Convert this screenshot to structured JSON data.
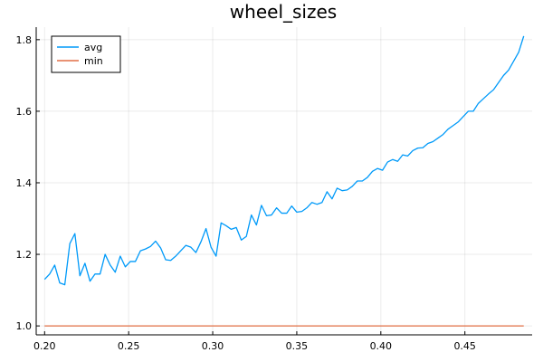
{
  "chart_data": {
    "type": "line",
    "title": "wheel_sizes",
    "xlabel": "",
    "ylabel": "",
    "xlim": [
      0.195,
      0.49
    ],
    "ylim": [
      0.975,
      1.835
    ],
    "xticks": [
      0.2,
      0.25,
      0.3,
      0.35,
      0.4,
      0.45
    ],
    "xtick_labels": [
      "0.20",
      "0.25",
      "0.30",
      "0.35",
      "0.40",
      "0.45"
    ],
    "yticks": [
      1.0,
      1.2,
      1.4,
      1.6,
      1.8
    ],
    "ytick_labels": [
      "1.0",
      "1.2",
      "1.4",
      "1.6",
      "1.8"
    ],
    "grid": true,
    "legend_position": "top-left",
    "series": [
      {
        "name": "avg",
        "color": "#009af9",
        "x": [
          0.2,
          0.203,
          0.206,
          0.209,
          0.212,
          0.215,
          0.218,
          0.221,
          0.224,
          0.227,
          0.23,
          0.233,
          0.236,
          0.239,
          0.242,
          0.245,
          0.248,
          0.251,
          0.254,
          0.257,
          0.26,
          0.263,
          0.266,
          0.269,
          0.272,
          0.275,
          0.278,
          0.281,
          0.284,
          0.287,
          0.29,
          0.293,
          0.296,
          0.299,
          0.302,
          0.305,
          0.308,
          0.311,
          0.314,
          0.317,
          0.32,
          0.323,
          0.326,
          0.329,
          0.332,
          0.335,
          0.338,
          0.341,
          0.344,
          0.347,
          0.35,
          0.353,
          0.356,
          0.359,
          0.362,
          0.365,
          0.368,
          0.371,
          0.374,
          0.377,
          0.38,
          0.383,
          0.386,
          0.389,
          0.392,
          0.395,
          0.398,
          0.401,
          0.404,
          0.407,
          0.41,
          0.413,
          0.416,
          0.419,
          0.422,
          0.425,
          0.428,
          0.431,
          0.434,
          0.437,
          0.44,
          0.443,
          0.446,
          0.449,
          0.452,
          0.455,
          0.458,
          0.461,
          0.464,
          0.467,
          0.47,
          0.473,
          0.476,
          0.479,
          0.482,
          0.485
        ],
        "values": [
          1.13,
          1.145,
          1.17,
          1.12,
          1.115,
          1.23,
          1.258,
          1.14,
          1.175,
          1.125,
          1.145,
          1.145,
          1.2,
          1.17,
          1.15,
          1.195,
          1.165,
          1.18,
          1.18,
          1.21,
          1.215,
          1.222,
          1.237,
          1.218,
          1.185,
          1.183,
          1.195,
          1.21,
          1.225,
          1.22,
          1.205,
          1.235,
          1.272,
          1.22,
          1.195,
          1.288,
          1.28,
          1.27,
          1.275,
          1.24,
          1.25,
          1.31,
          1.282,
          1.337,
          1.308,
          1.31,
          1.33,
          1.315,
          1.315,
          1.335,
          1.318,
          1.32,
          1.33,
          1.345,
          1.34,
          1.345,
          1.375,
          1.355,
          1.385,
          1.378,
          1.38,
          1.39,
          1.405,
          1.405,
          1.415,
          1.432,
          1.44,
          1.435,
          1.458,
          1.465,
          1.46,
          1.478,
          1.475,
          1.49,
          1.497,
          1.498,
          1.51,
          1.515,
          1.525,
          1.535,
          1.55,
          1.56,
          1.57,
          1.585,
          1.6,
          1.6,
          1.622,
          1.635,
          1.648,
          1.66,
          1.68,
          1.7,
          1.715,
          1.74,
          1.765,
          1.81
        ]
      },
      {
        "name": "min",
        "color": "#e26f46",
        "x": [
          0.2,
          0.485
        ],
        "values": [
          1.0,
          1.0
        ]
      }
    ]
  }
}
